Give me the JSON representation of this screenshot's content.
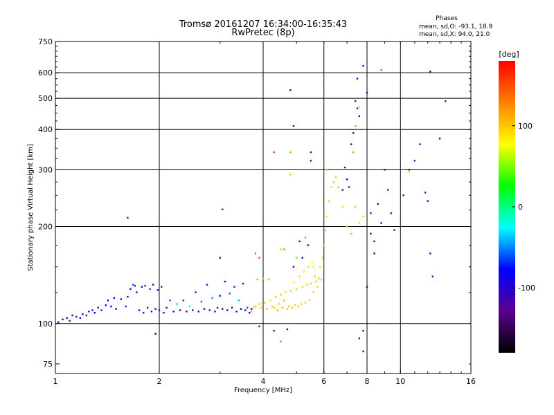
{
  "header": {
    "title_line1": "Tromsø 20161207 16:34:00-16:35:43",
    "title_line2": "RwPretec (8p)",
    "stats_title": "Phases",
    "stats_o": "mean, sd,O: -93.1, 18.9",
    "stats_x": "mean, sd,X:  94.0, 21.0"
  },
  "chart_data": {
    "type": "scatter",
    "xlabel": "Frequency [MHz]",
    "ylabel": "Stationary phase Virtual Height [km]",
    "x_scale": "log",
    "y_scale": "log",
    "xlim": [
      1,
      16
    ],
    "ylim": [
      70,
      750
    ],
    "x_ticks": [
      1,
      2,
      4,
      6,
      8,
      10,
      16
    ],
    "y_ticks": [
      75,
      100,
      200,
      300,
      400,
      500,
      600,
      750
    ],
    "x_grid": [
      2,
      4,
      6,
      8,
      10
    ],
    "y_grid": [
      100,
      200,
      300,
      400,
      500,
      600
    ],
    "grid": true,
    "colorbar": {
      "label": "[deg]",
      "range": [
        -180,
        180
      ],
      "ticks": [
        100,
        0,
        -100
      ],
      "colormap": [
        "#000000",
        "#5a0090",
        "#0000ff",
        "#00ffff",
        "#00ff00",
        "#ffff00",
        "#ff8000",
        "#ff0000"
      ]
    },
    "series": [
      {
        "points": [
          [
            1.02,
            101,
            -110
          ],
          [
            1.05,
            103,
            -100
          ],
          [
            1.08,
            104,
            -95
          ],
          [
            1.1,
            102,
            -105
          ],
          [
            1.12,
            106,
            -90
          ],
          [
            1.15,
            105,
            -100
          ],
          [
            1.18,
            104,
            -110
          ],
          [
            1.2,
            107,
            -95
          ],
          [
            1.23,
            106,
            -105
          ],
          [
            1.25,
            109,
            -90
          ],
          [
            1.28,
            110,
            -100
          ],
          [
            1.3,
            108,
            -85
          ],
          [
            1.33,
            112,
            -95
          ],
          [
            1.36,
            110,
            -100
          ],
          [
            1.4,
            114,
            -90
          ],
          [
            1.42,
            118,
            -100
          ],
          [
            1.45,
            113,
            -95
          ],
          [
            1.48,
            120,
            -80
          ],
          [
            1.5,
            111,
            -100
          ],
          [
            1.55,
            119,
            -85
          ],
          [
            1.6,
            113,
            -95
          ],
          [
            1.62,
            121,
            -90
          ],
          [
            1.65,
            128,
            -75
          ],
          [
            1.68,
            132,
            -60
          ],
          [
            1.7,
            131,
            -70
          ],
          [
            1.72,
            125,
            -80
          ],
          [
            1.75,
            110,
            -90
          ],
          [
            1.78,
            130,
            -75
          ],
          [
            1.8,
            108,
            -95
          ],
          [
            1.82,
            131,
            -70
          ],
          [
            1.85,
            112,
            -90
          ],
          [
            1.88,
            128,
            -65
          ],
          [
            1.9,
            109,
            -100
          ],
          [
            1.92,
            132,
            -75
          ],
          [
            1.95,
            111,
            -90
          ],
          [
            1.98,
            127,
            -80
          ],
          [
            2.0,
            110,
            -100
          ],
          [
            2.03,
            130,
            -70
          ],
          [
            2.06,
            108,
            -95
          ],
          [
            2.1,
            112,
            -85
          ],
          [
            2.15,
            118,
            -60
          ],
          [
            2.2,
            109,
            -100
          ],
          [
            2.25,
            115,
            -40
          ],
          [
            2.3,
            110,
            -95
          ],
          [
            2.35,
            118,
            -70
          ],
          [
            2.4,
            109,
            -90
          ],
          [
            2.45,
            113,
            -20
          ],
          [
            2.5,
            110,
            -95
          ],
          [
            2.55,
            125,
            -80
          ],
          [
            2.6,
            109,
            -100
          ],
          [
            2.65,
            117,
            -60
          ],
          [
            2.7,
            111,
            -90
          ],
          [
            2.75,
            132,
            -70
          ],
          [
            2.8,
            110,
            -95
          ],
          [
            2.85,
            120,
            -50
          ],
          [
            2.9,
            109,
            -100
          ],
          [
            2.95,
            112,
            -85
          ],
          [
            3.0,
            122,
            -80
          ],
          [
            3.05,
            111,
            -95
          ],
          [
            3.1,
            135,
            -75
          ],
          [
            3.15,
            110,
            -90
          ],
          [
            3.2,
            124,
            -60
          ],
          [
            3.25,
            112,
            -95
          ],
          [
            3.3,
            130,
            -70
          ],
          [
            3.35,
            109,
            -100
          ],
          [
            3.4,
            118,
            -40
          ],
          [
            3.45,
            111,
            -90
          ],
          [
            3.5,
            133,
            -80
          ],
          [
            3.55,
            110,
            -95
          ],
          [
            3.6,
            112,
            -60
          ],
          [
            3.65,
            108,
            -85
          ],
          [
            3.7,
            111,
            -90
          ],
          [
            1.62,
            213,
            -120
          ],
          [
            1.95,
            93,
            -150
          ],
          [
            3.05,
            226,
            -130
          ],
          [
            3.0,
            160,
            -110
          ]
        ]
      },
      {
        "points": [
          [
            3.7,
            109,
            110
          ],
          [
            3.75,
            112,
            100
          ],
          [
            3.8,
            113,
            105
          ],
          [
            3.85,
            137,
            110
          ],
          [
            3.9,
            115,
            100
          ],
          [
            3.95,
            112,
            95
          ],
          [
            4.0,
            138,
            110
          ],
          [
            4.05,
            116,
            100
          ],
          [
            4.1,
            111,
            105
          ],
          [
            4.15,
            137,
            110
          ],
          [
            4.2,
            118,
            90
          ],
          [
            4.25,
            113,
            100
          ],
          [
            4.3,
            112,
            105
          ],
          [
            4.35,
            121,
            100
          ],
          [
            4.4,
            110,
            110
          ],
          [
            4.45,
            115,
            95
          ],
          [
            4.5,
            123,
            100
          ],
          [
            4.55,
            112,
            105
          ],
          [
            4.6,
            118,
            100
          ],
          [
            4.65,
            125,
            95
          ],
          [
            4.7,
            111,
            100
          ],
          [
            4.75,
            113,
            105
          ],
          [
            4.8,
            126,
            95
          ],
          [
            4.85,
            112,
            100
          ],
          [
            4.9,
            134,
            80
          ],
          [
            4.95,
            114,
            100
          ],
          [
            5.0,
            128,
            95
          ],
          [
            5.05,
            113,
            105
          ],
          [
            5.1,
            140,
            90
          ],
          [
            5.15,
            115,
            100
          ],
          [
            5.2,
            130,
            95
          ],
          [
            5.25,
            145,
            90
          ],
          [
            5.3,
            116,
            100
          ],
          [
            5.35,
            132,
            95
          ],
          [
            5.4,
            150,
            90
          ],
          [
            5.45,
            118,
            100
          ],
          [
            5.5,
            133,
            95
          ],
          [
            5.55,
            155,
            80
          ],
          [
            5.6,
            125,
            100
          ],
          [
            5.65,
            140,
            95
          ],
          [
            5.7,
            135,
            100
          ],
          [
            5.75,
            130,
            95
          ],
          [
            5.8,
            138,
            100
          ],
          [
            5.85,
            150,
            90
          ],
          [
            5.9,
            137,
            100
          ],
          [
            5.95,
            160,
            90
          ],
          [
            6.0,
            175,
            95
          ],
          [
            6.05,
            195,
            100
          ],
          [
            6.1,
            215,
            95
          ],
          [
            6.2,
            240,
            100
          ],
          [
            6.3,
            265,
            90
          ],
          [
            6.4,
            275,
            100
          ],
          [
            6.5,
            285,
            95
          ],
          [
            6.6,
            265,
            100
          ],
          [
            6.8,
            230,
            95
          ],
          [
            7.0,
            200,
            100
          ],
          [
            7.2,
            190,
            105
          ],
          [
            7.4,
            230,
            110
          ],
          [
            7.6,
            205,
            95
          ],
          [
            7.8,
            215,
            100
          ],
          [
            3.8,
            165,
            140
          ],
          [
            3.9,
            160,
            150
          ],
          [
            4.6,
            170,
            130
          ],
          [
            4.8,
            340,
            120
          ],
          [
            4.8,
            290,
            100
          ],
          [
            6.1,
            300,
            110
          ],
          [
            7.4,
            410,
            120
          ],
          [
            7.6,
            470,
            100
          ],
          [
            8.8,
            612,
            140
          ],
          [
            10.6,
            295,
            80
          ],
          [
            4.5,
            170,
            60
          ],
          [
            5.0,
            160,
            40
          ],
          [
            5.3,
            185,
            30
          ],
          [
            5.6,
            150,
            70
          ],
          [
            7.3,
            340,
            120
          ],
          [
            4.3,
            340,
            150
          ]
        ]
      },
      {
        "points": [
          [
            3.9,
            98,
            -100
          ],
          [
            4.3,
            95,
            -110
          ],
          [
            4.5,
            88,
            -40
          ],
          [
            4.7,
            96,
            -100
          ],
          [
            4.9,
            150,
            -90
          ],
          [
            5.1,
            180,
            -100
          ],
          [
            5.2,
            160,
            -80
          ],
          [
            5.4,
            175,
            -100
          ],
          [
            5.5,
            320,
            -130
          ],
          [
            5.5,
            340,
            -110
          ],
          [
            6.8,
            260,
            -110
          ],
          [
            6.9,
            305,
            -120
          ],
          [
            7.0,
            280,
            -100
          ],
          [
            7.1,
            265,
            -110
          ],
          [
            7.2,
            360,
            -100
          ],
          [
            7.3,
            390,
            -120
          ],
          [
            7.4,
            490,
            -100
          ],
          [
            7.5,
            465,
            -110
          ],
          [
            7.6,
            440,
            -100
          ],
          [
            7.5,
            575,
            -110
          ],
          [
            7.8,
            630,
            -90
          ],
          [
            8.0,
            520,
            -100
          ],
          [
            7.6,
            90,
            -130
          ],
          [
            7.8,
            82,
            -140
          ],
          [
            7.8,
            95,
            -120
          ],
          [
            8.0,
            130,
            -110
          ],
          [
            8.2,
            220,
            -130
          ],
          [
            8.4,
            180,
            -120
          ],
          [
            8.6,
            235,
            -110
          ],
          [
            8.8,
            205,
            -100
          ],
          [
            9.0,
            300,
            -120
          ],
          [
            9.2,
            260,
            -110
          ],
          [
            9.4,
            220,
            -130
          ],
          [
            9.6,
            195,
            -100
          ],
          [
            11.0,
            320,
            -110
          ],
          [
            11.4,
            360,
            -100
          ],
          [
            11.8,
            255,
            -130
          ],
          [
            12.0,
            240,
            -120
          ],
          [
            12.2,
            165,
            -110
          ],
          [
            12.4,
            140,
            -100
          ],
          [
            12.2,
            605,
            -110
          ],
          [
            13.0,
            375,
            -100
          ],
          [
            13.5,
            490,
            -120
          ],
          [
            4.9,
            410,
            -110
          ],
          [
            4.8,
            530,
            -100
          ],
          [
            10.2,
            250,
            -140
          ],
          [
            10.6,
            300,
            -90
          ],
          [
            8.2,
            190,
            -150
          ],
          [
            8.4,
            165,
            -140
          ]
        ]
      }
    ]
  }
}
